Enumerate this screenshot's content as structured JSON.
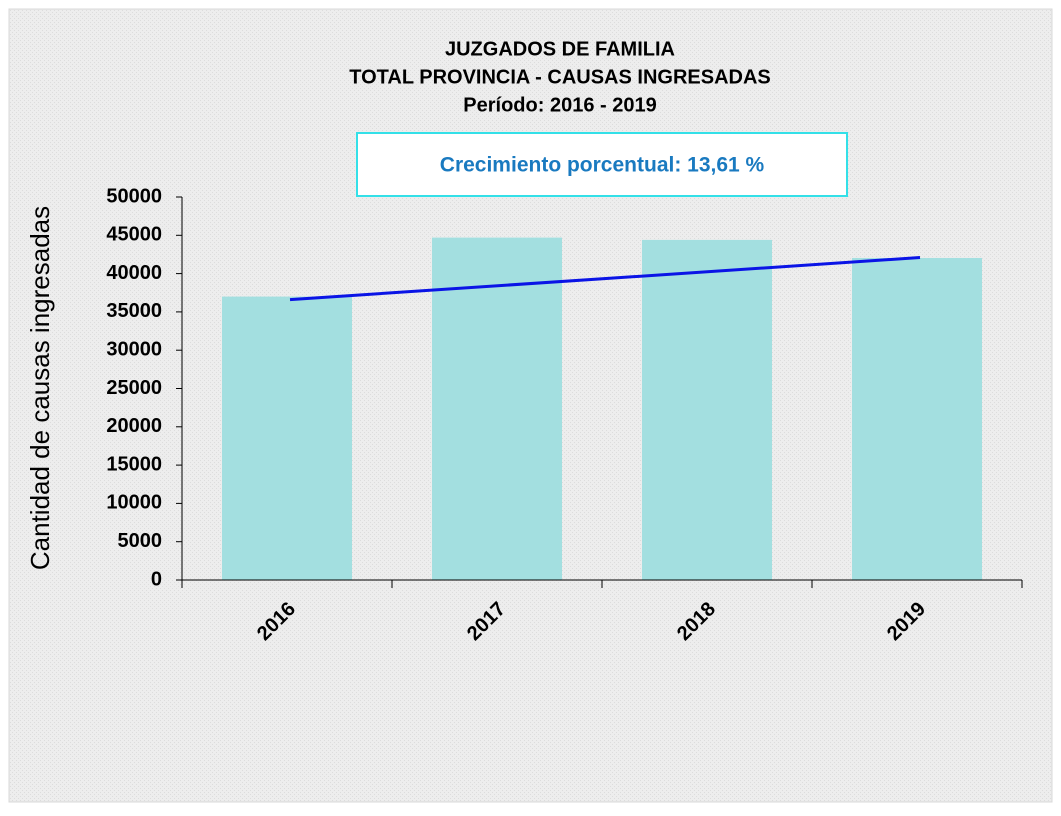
{
  "chart_data": {
    "type": "bar",
    "title_lines": [
      "JUZGADOS  DE FAMILIA",
      "TOTAL PROVINCIA - CAUSAS INGRESADAS",
      "Período: 2016 - 2019"
    ],
    "annotation": "Crecimiento porcentual: 13,61 %",
    "ylabel": "Cantidad de causas ingresadas",
    "categories": [
      "2016",
      "2017",
      "2018",
      "2019"
    ],
    "values": [
      37000,
      44700,
      44400,
      42040
    ],
    "color": "#a3dfe0",
    "trendline": {
      "color": "#0a14e6",
      "values": [
        36600,
        42100
      ]
    },
    "ylim": [
      0,
      50000
    ],
    "yticks": [
      0,
      5000,
      10000,
      15000,
      20000,
      25000,
      30000,
      35000,
      40000,
      45000,
      50000
    ]
  }
}
